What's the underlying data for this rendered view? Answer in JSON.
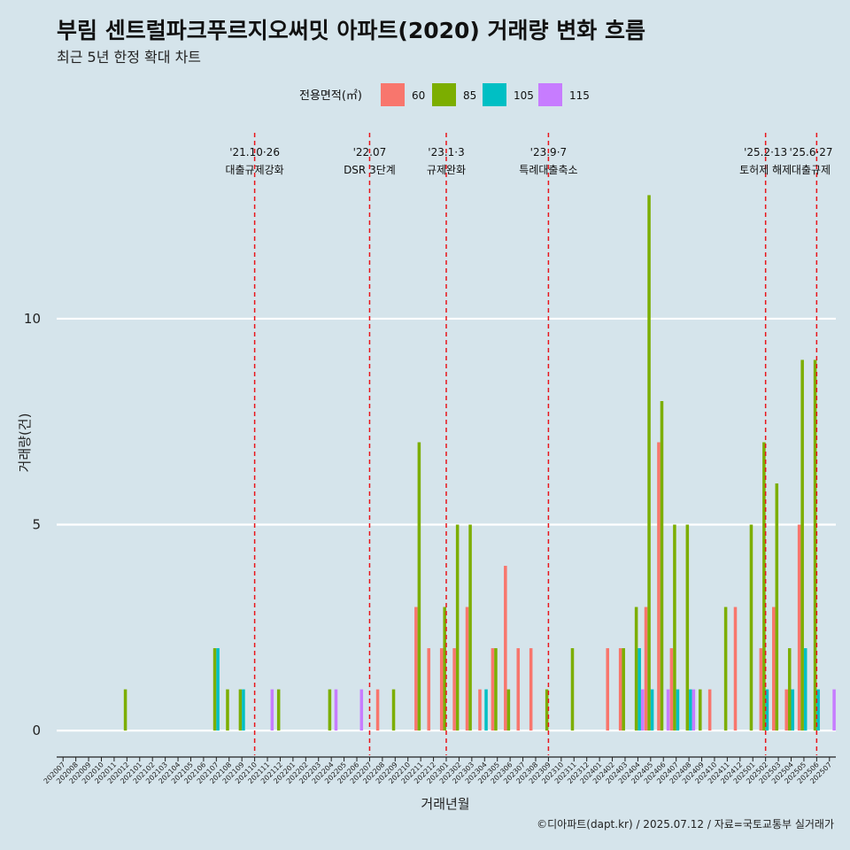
{
  "colors": {
    "background": "#d5e4eb",
    "grid": "#ffffff",
    "event_line": "#e8151b",
    "series": [
      "#f8766d",
      "#7cae00",
      "#00bfc4",
      "#c77cff"
    ]
  },
  "chart_data": {
    "type": "bar",
    "title": "부림 센트럴파크푸르지오써밋 아파트(2020) 거래량 변화 흐름",
    "subtitle": "최근 5년 한정 확대 차트",
    "xlabel": "거래년월",
    "ylabel": "거래량(건)",
    "caption": "©디아파트(dapt.kr) / 2025.07.12 / 자료=국토교통부 실거래가",
    "ylim": [
      -0.6,
      14.6
    ],
    "yticks": [
      0,
      5,
      10
    ],
    "grid": true,
    "legend": {
      "title": "전용면적(㎡)",
      "position": "top",
      "entries": [
        "60",
        "85",
        "105",
        "115"
      ]
    },
    "categories": [
      "202007",
      "202008",
      "202009",
      "202010",
      "202011",
      "202012",
      "202101",
      "202102",
      "202103",
      "202104",
      "202105",
      "202106",
      "202107",
      "202108",
      "202109",
      "202110",
      "202111",
      "202112",
      "202201",
      "202202",
      "202203",
      "202204",
      "202205",
      "202206",
      "202207",
      "202208",
      "202209",
      "202210",
      "202211",
      "202212",
      "202301",
      "202302",
      "202303",
      "202304",
      "202305",
      "202306",
      "202307",
      "202308",
      "202309",
      "202310",
      "202311",
      "202312",
      "202401",
      "202402",
      "202403",
      "202404",
      "202405",
      "202406",
      "202407",
      "202408",
      "202409",
      "202410",
      "202411",
      "202412",
      "202501",
      "202502",
      "202503",
      "202504",
      "202505",
      "202506",
      "202507"
    ],
    "series": [
      {
        "name": "60",
        "values": [
          0,
          0,
          0,
          0,
          0,
          0,
          0,
          0,
          0,
          0,
          0,
          0,
          0,
          0,
          0,
          0,
          0,
          0,
          0,
          0,
          0,
          0,
          0,
          0,
          0,
          1,
          0,
          0,
          3,
          2,
          2,
          2,
          3,
          1,
          2,
          4,
          2,
          2,
          0,
          0,
          0,
          0,
          0,
          2,
          2,
          0,
          3,
          7,
          2,
          0,
          0,
          1,
          0,
          3,
          0,
          2,
          3,
          1,
          5,
          0,
          0
        ]
      },
      {
        "name": "85",
        "values": [
          0,
          0,
          0,
          0,
          0,
          1,
          0,
          0,
          0,
          0,
          0,
          0,
          2,
          1,
          1,
          0,
          0,
          1,
          0,
          0,
          0,
          1,
          0,
          0,
          0,
          0,
          1,
          0,
          7,
          0,
          3,
          5,
          5,
          0,
          2,
          1,
          0,
          0,
          1,
          0,
          2,
          0,
          0,
          0,
          2,
          3,
          13,
          8,
          5,
          5,
          1,
          0,
          3,
          0,
          5,
          7,
          6,
          2,
          9,
          9,
          0
        ]
      },
      {
        "name": "105",
        "values": [
          0,
          0,
          0,
          0,
          0,
          0,
          0,
          0,
          0,
          0,
          0,
          0,
          2,
          0,
          1,
          0,
          0,
          0,
          0,
          0,
          0,
          0,
          0,
          0,
          0,
          0,
          0,
          0,
          0,
          0,
          0,
          0,
          0,
          1,
          0,
          0,
          0,
          0,
          0,
          0,
          0,
          0,
          0,
          0,
          0,
          2,
          1,
          0,
          1,
          1,
          0,
          0,
          0,
          0,
          0,
          1,
          0,
          1,
          2,
          1,
          0
        ]
      },
      {
        "name": "115",
        "values": [
          0,
          0,
          0,
          0,
          0,
          0,
          0,
          0,
          0,
          0,
          0,
          0,
          0,
          0,
          0,
          0,
          1,
          0,
          0,
          0,
          0,
          1,
          0,
          1,
          0,
          0,
          0,
          0,
          0,
          0,
          0,
          0,
          0,
          0,
          0,
          0,
          0,
          0,
          0,
          0,
          0,
          0,
          0,
          0,
          0,
          1,
          0,
          1,
          0,
          1,
          0,
          0,
          0,
          0,
          0,
          0,
          0,
          0,
          0,
          0,
          1
        ]
      }
    ],
    "annotations": [
      {
        "date": "'21.10·26",
        "label": "대출규제강화",
        "x": "202110"
      },
      {
        "date": "'22.07",
        "label": "DSR 3단계",
        "x": "202207"
      },
      {
        "date": "'23.1·3",
        "label": "규제완화",
        "x": "202301"
      },
      {
        "date": "'23.9·7",
        "label": "특례대출축소",
        "x": "202309"
      },
      {
        "date": "'25.2·13",
        "label": "토허제 해제",
        "x": "202502"
      },
      {
        "date": "'25.6·27",
        "label": "대출규제",
        "x": "202506"
      }
    ]
  }
}
